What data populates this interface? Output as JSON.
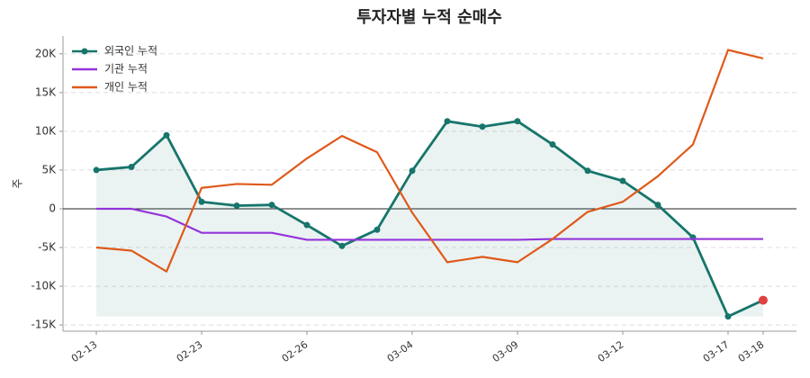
{
  "chart_data": {
    "type": "line",
    "title": "투자자별 누적 순매수",
    "y_label": "주",
    "categories": [
      "02-13",
      null,
      null,
      "02-23",
      null,
      null,
      "02-26",
      null,
      null,
      "03-04",
      null,
      null,
      "03-09",
      null,
      null,
      "03-12",
      null,
      null,
      "03-17",
      "03-18"
    ],
    "series": [
      {
        "name": "외국인 누적",
        "color": "#17756b",
        "markers": true,
        "fill": true,
        "values": [
          5000,
          5400,
          9500,
          900,
          400,
          500,
          -2100,
          -4800,
          -2700,
          4900,
          11300,
          10600,
          11300,
          8300,
          4900,
          3600,
          500,
          -3700,
          -13900,
          -11800
        ]
      },
      {
        "name": "기관 누적",
        "color": "#9434d9",
        "markers": false,
        "fill": false,
        "values": [
          0,
          0,
          -1000,
          -3100,
          -3100,
          -3100,
          -4000,
          -4000,
          -4000,
          -4000,
          -4000,
          -4000,
          -4000,
          -3900,
          -3900,
          -3900,
          -3900,
          -3900,
          -3900,
          -3900
        ]
      },
      {
        "name": "개인 누적",
        "color": "#e0591a",
        "markers": false,
        "fill": false,
        "values": [
          -5000,
          -5400,
          -8100,
          2700,
          3200,
          3100,
          6500,
          9400,
          7300,
          -500,
          -6900,
          -6200,
          -6900,
          -3900,
          -400,
          900,
          4200,
          8300,
          20500,
          19400
        ]
      }
    ],
    "last_marker_color": "#e04040",
    "ylim": [
      -15800,
      22300
    ],
    "yticks": [
      {
        "value": -15000,
        "label": "-15K"
      },
      {
        "value": -10000,
        "label": "-10K"
      },
      {
        "value": -5000,
        "label": "-5K"
      },
      0,
      {
        "value": 5000,
        "label": "5K"
      },
      {
        "value": 10000,
        "label": "10K"
      },
      {
        "value": 15000,
        "label": "15K"
      },
      {
        "value": 20000,
        "label": "20K"
      }
    ],
    "grid": true,
    "legend": "upper-left"
  }
}
